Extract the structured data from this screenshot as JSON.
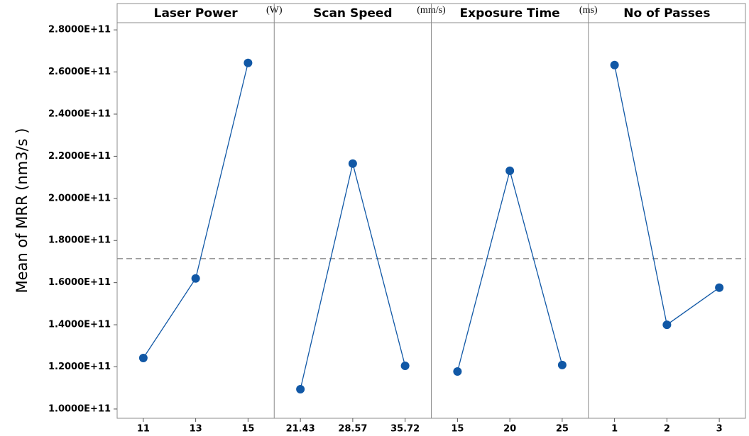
{
  "chart_data": {
    "type": "main-effects",
    "y_label": "Mean of MRR (nm3/s )",
    "color": "#1158a6",
    "reference_line": 171400000000,
    "reference_color": "#8c8c8c",
    "ylim": [
      95600000000,
      292500000000
    ],
    "yticks": [
      {
        "value": 100000000000,
        "label": "1.0000E+11"
      },
      {
        "value": 120000000000,
        "label": "1.2000E+11"
      },
      {
        "value": 140000000000,
        "label": "1.4000E+11"
      },
      {
        "value": 160000000000,
        "label": "1.6000E+11"
      },
      {
        "value": 180000000000,
        "label": "1.8000E+11"
      },
      {
        "value": 200000000000,
        "label": "2.0000E+11"
      },
      {
        "value": 220000000000,
        "label": "2.2000E+11"
      },
      {
        "value": 240000000000,
        "label": "2.4000E+11"
      },
      {
        "value": 260000000000,
        "label": "2.6000E+11"
      },
      {
        "value": 280000000000,
        "label": "2.8000E+11"
      }
    ],
    "panels": [
      {
        "title": "Laser Power",
        "unit": "(W)",
        "categories": [
          "11",
          "13",
          "15"
        ],
        "values": [
          124200000000,
          162000000000,
          264300000000
        ]
      },
      {
        "title": "Scan Speed",
        "unit": "(mm/s)",
        "categories": [
          "21.43",
          "28.57",
          "35.72"
        ],
        "values": [
          109400000000,
          216500000000,
          120500000000
        ]
      },
      {
        "title": "Exposure Time",
        "unit": "(ms)",
        "categories": [
          "15",
          "20",
          "25"
        ],
        "values": [
          117800000000,
          213100000000,
          120900000000
        ]
      },
      {
        "title": "No of Passes",
        "categories": [
          "1",
          "2",
          "3"
        ],
        "values": [
          263300000000,
          140000000000,
          157600000000
        ]
      }
    ]
  }
}
